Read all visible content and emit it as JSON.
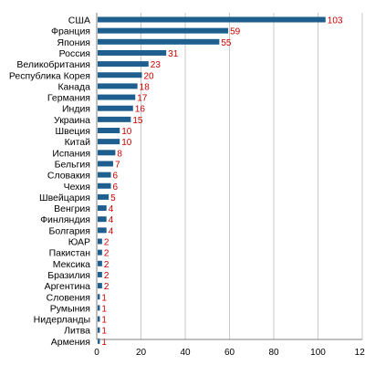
{
  "chart_data": {
    "type": "bar",
    "orientation": "horizontal",
    "categories": [
      "США",
      "Франция",
      "Япония",
      "Россия",
      "Великобритания",
      "Республика Корея",
      "Канада",
      "Германия",
      "Индия",
      "Украина",
      "Швеция",
      "Китай",
      "Испания",
      "Бельгия",
      "Словакия",
      "Чехия",
      "Швейцария",
      "Венгрия",
      "Финляндия",
      "Болгария",
      "ЮАР",
      "Пакистан",
      "Мексика",
      "Бразилия",
      "Аргентина",
      "Словения",
      "Румыния",
      "Нидерланды",
      "Литва",
      "Армения"
    ],
    "values": [
      103,
      59,
      55,
      31,
      23,
      20,
      18,
      17,
      16,
      15,
      10,
      10,
      8,
      7,
      6,
      6,
      5,
      4,
      4,
      4,
      2,
      2,
      2,
      2,
      2,
      1,
      1,
      1,
      1,
      1
    ],
    "xlim": [
      0,
      120
    ],
    "xticks": [
      "0",
      "20",
      "40",
      "60",
      "80",
      "100",
      "120"
    ],
    "grid": true,
    "colors": {
      "bar": "#1f5f8f",
      "value_label": "#cc0000",
      "grid": "#c8c8c8"
    }
  }
}
